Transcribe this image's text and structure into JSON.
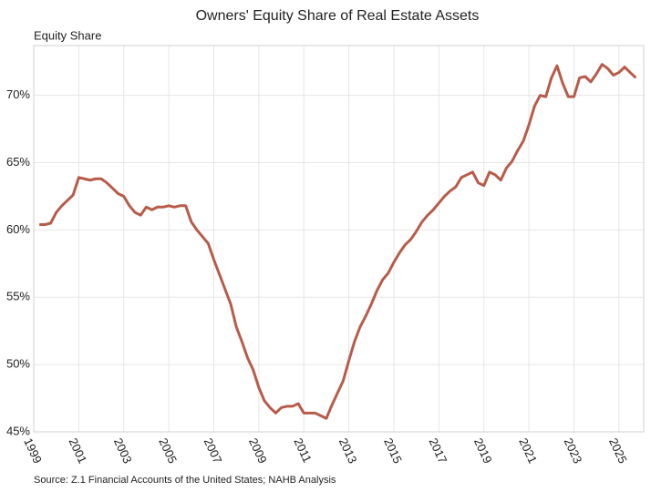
{
  "chart_data": {
    "type": "line",
    "title": "Owners' Equity Share of Real Estate Assets",
    "y_label": "Equity Share",
    "source": "Source: Z.1 Financial Accounts of the United States; NAHB Analysis",
    "x": [
      1999.25,
      1999.5,
      1999.75,
      2000,
      2000.25,
      2000.5,
      2000.75,
      2001,
      2001.25,
      2001.5,
      2001.75,
      2002,
      2002.25,
      2002.5,
      2002.75,
      2003,
      2003.25,
      2003.5,
      2003.75,
      2004,
      2004.25,
      2004.5,
      2004.75,
      2005,
      2005.25,
      2005.5,
      2005.75,
      2006,
      2006.25,
      2006.5,
      2006.75,
      2007,
      2007.25,
      2007.5,
      2007.75,
      2008,
      2008.25,
      2008.5,
      2008.75,
      2009,
      2009.25,
      2009.5,
      2009.75,
      2010,
      2010.25,
      2010.5,
      2010.75,
      2011,
      2011.25,
      2011.5,
      2011.75,
      2012,
      2012.25,
      2012.5,
      2012.75,
      2013,
      2013.25,
      2013.5,
      2013.75,
      2014,
      2014.25,
      2014.5,
      2014.75,
      2015,
      2015.25,
      2015.5,
      2015.75,
      2016,
      2016.25,
      2016.5,
      2016.75,
      2017,
      2017.25,
      2017.5,
      2017.75,
      2018,
      2018.25,
      2018.5,
      2018.75,
      2019,
      2019.25,
      2019.5,
      2019.75,
      2020,
      2020.25,
      2020.5,
      2020.75,
      2021,
      2021.25,
      2021.5,
      2021.75,
      2022,
      2022.25,
      2022.5,
      2022.75,
      2023,
      2023.25,
      2023.5,
      2023.75,
      2024,
      2024.25,
      2024.5,
      2024.75,
      2025,
      2025.25,
      2025.5,
      2025.75
    ],
    "series": [
      {
        "name": "Equity Share",
        "color": "#b85c49",
        "values": [
          60.4,
          60.4,
          60.5,
          61.3,
          61.8,
          62.2,
          62.6,
          63.9,
          63.8,
          63.7,
          63.8,
          63.8,
          63.5,
          63.1,
          62.7,
          62.5,
          61.8,
          61.3,
          61.1,
          61.7,
          61.5,
          61.7,
          61.7,
          61.8,
          61.7,
          61.8,
          61.8,
          60.6,
          60.0,
          59.5,
          59.0,
          57.8,
          56.7,
          55.6,
          54.5,
          52.8,
          51.7,
          50.5,
          49.6,
          48.3,
          47.3,
          46.8,
          46.4,
          46.8,
          46.9,
          46.9,
          47.1,
          46.4,
          46.4,
          46.4,
          46.2,
          46.0,
          47.0,
          47.9,
          48.8,
          50.3,
          51.7,
          52.8,
          53.6,
          54.5,
          55.5,
          56.3,
          56.8,
          57.6,
          58.3,
          58.9,
          59.3,
          59.9,
          60.6,
          61.1,
          61.5,
          62.0,
          62.5,
          62.9,
          63.2,
          63.9,
          64.1,
          64.3,
          63.5,
          63.3,
          64.3,
          64.1,
          63.7,
          64.6,
          65.1,
          65.9,
          66.6,
          67.8,
          69.2,
          70.0,
          69.9,
          71.3,
          72.2,
          70.9,
          69.9,
          69.9,
          71.3,
          71.4,
          71.0,
          71.6,
          72.3,
          72.0,
          71.5,
          71.7,
          72.1,
          71.7,
          71.3
        ]
      }
    ],
    "xlim": [
      1999,
      2026.1
    ],
    "xticks": [
      1999,
      2001,
      2003,
      2005,
      2007,
      2009,
      2011,
      2013,
      2015,
      2017,
      2019,
      2021,
      2023,
      2025
    ],
    "ylim": [
      45,
      73.7
    ],
    "yticks": [
      {
        "value": 45,
        "label": "45%"
      },
      {
        "value": 50,
        "label": "50%"
      },
      {
        "value": 55,
        "label": "55%"
      },
      {
        "value": 60,
        "label": "60%"
      },
      {
        "value": 65,
        "label": "65%"
      },
      {
        "value": 70,
        "label": "70%"
      }
    ],
    "grid": true
  }
}
